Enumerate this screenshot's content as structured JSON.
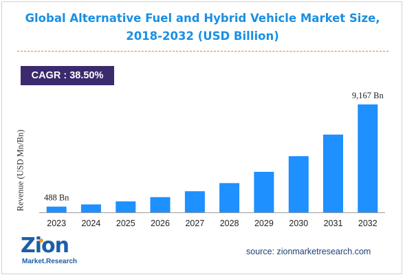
{
  "title": "Global Alternative Fuel and Hybrid Vehicle Market Size, 2018-2032 (USD Billion)",
  "cagr_badge": "CAGR : 38.50%",
  "source": "source: zionmarketresearch.com",
  "logo": {
    "main": "Zion",
    "sub": "Market.Research"
  },
  "colors": {
    "bar": "#1e90ff",
    "title": "#1a8fe3",
    "badge": "#3b2a6e",
    "rule": "#e07b39"
  },
  "chart_data": {
    "type": "bar",
    "categories": [
      "2023",
      "2024",
      "2025",
      "2026",
      "2027",
      "2028",
      "2029",
      "2030",
      "2031",
      "2032"
    ],
    "values": [
      488,
      676,
      936,
      1297,
      1796,
      2487,
      3444,
      4770,
      6606,
      9167
    ],
    "data_labels": [
      "488 Bn",
      "",
      "",
      "",
      "",
      "",
      "",
      "",
      "",
      "9,167 Bn"
    ],
    "title": "Global Alternative Fuel and Hybrid Vehicle Market Size, 2018-2032 (USD Billion)",
    "xlabel": "",
    "ylabel": "Revenue (USD Mn/Bn)",
    "ylim": [
      0,
      9800
    ],
    "grid": false,
    "legend": "none"
  }
}
